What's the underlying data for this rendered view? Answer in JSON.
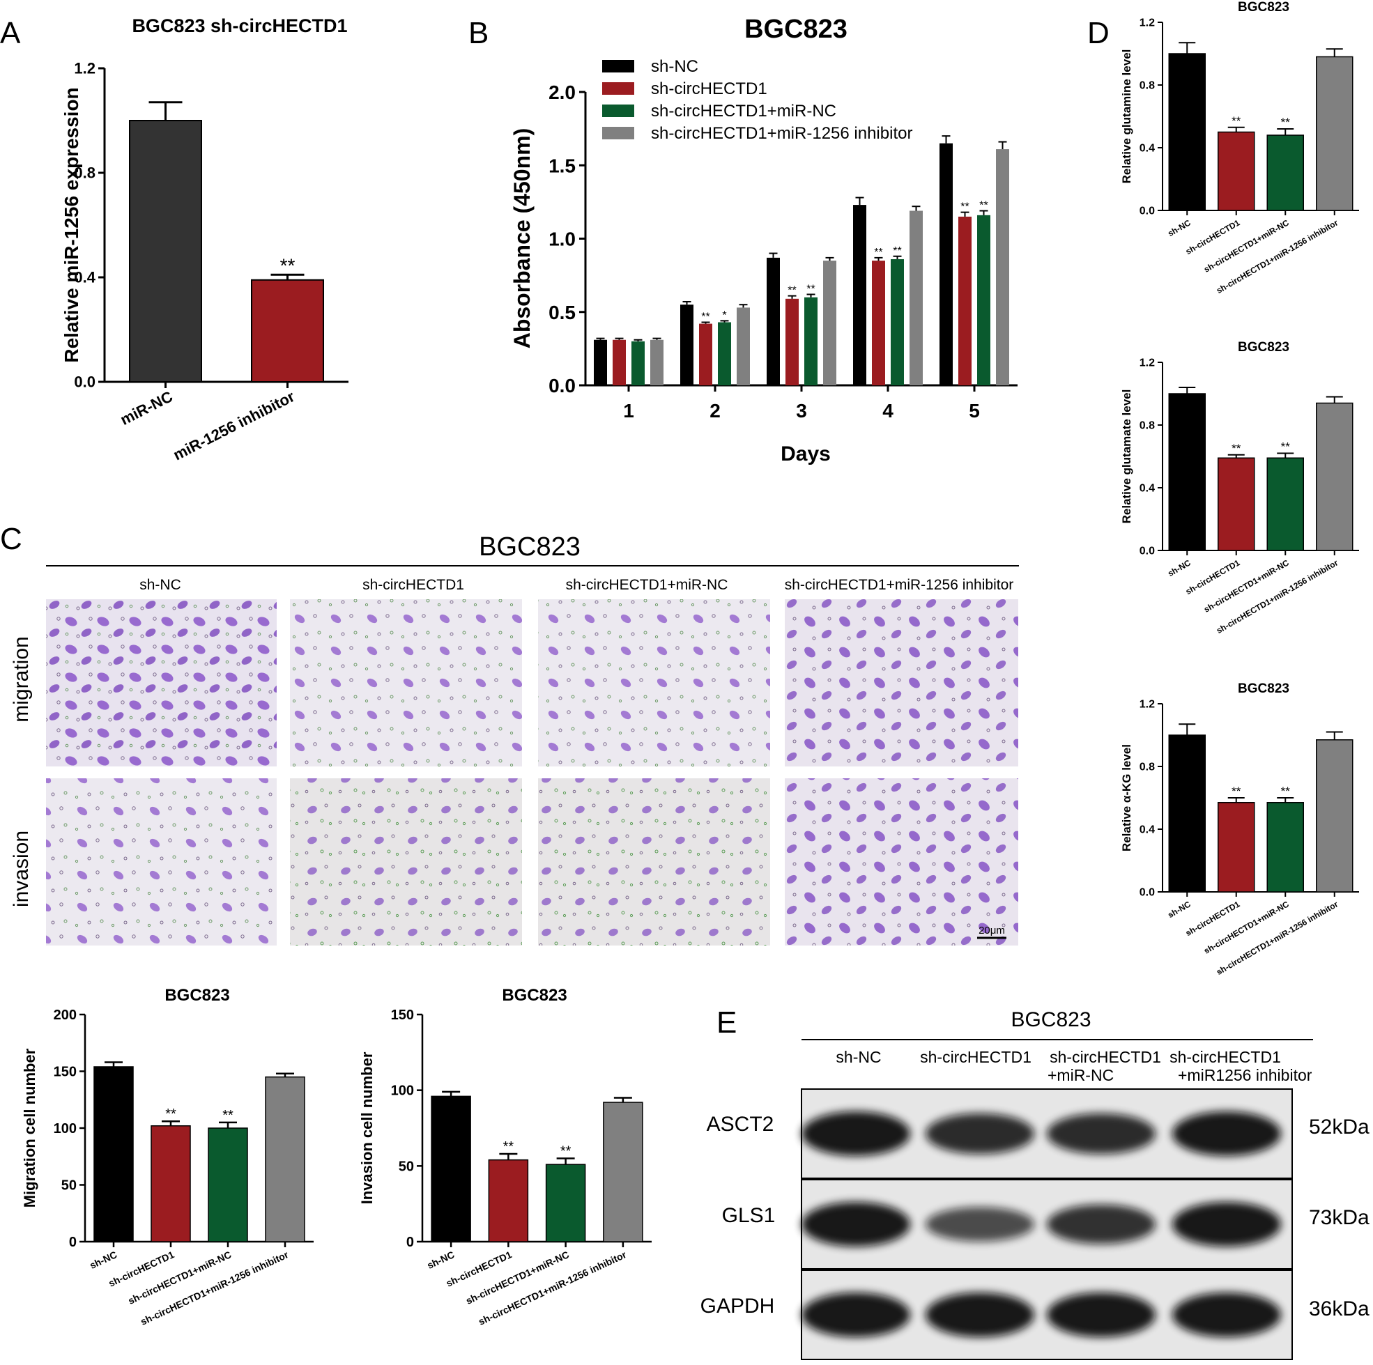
{
  "colors": {
    "black": "#000000",
    "dark": "#333333",
    "red": "#9b1c20",
    "green": "#0a5a2e",
    "gray": "#808080",
    "purple": "#7a45b8"
  },
  "panel_letters": {
    "a": "A",
    "b": "B",
    "c": "C",
    "d": "D",
    "e": "E"
  },
  "chart_data": [
    {
      "id": "A",
      "type": "bar",
      "title": "BGC823 sh-circHECTD1",
      "ylabel": "Relative miR-1256 expression",
      "xlabel": "",
      "categories": [
        "miR-NC",
        "miR-1256 inhibitor"
      ],
      "values": [
        1.0,
        0.39
      ],
      "errors": [
        0.07,
        0.02
      ],
      "sig": [
        "",
        "**"
      ],
      "ylim": [
        0,
        1.2
      ],
      "yticks": [
        "0.0",
        "0.4",
        "0.8",
        "1.2"
      ],
      "ytick_values": [
        0,
        0.4,
        0.8,
        1.2
      ]
    },
    {
      "id": "B",
      "type": "bar",
      "title": "BGC823",
      "ylabel": "Absorbance (450nm)",
      "xlabel": "Days",
      "categories": [
        "1",
        "2",
        "3",
        "4",
        "5"
      ],
      "ylim": [
        0,
        2.0
      ],
      "yticks": [
        "0.0",
        "0.5",
        "1.0",
        "1.5",
        "2.0"
      ],
      "ytick_values": [
        0,
        0.5,
        1.0,
        1.5,
        2.0
      ],
      "legend": [
        "sh-NC",
        "sh-circHECTD1",
        "sh-circHECTD1+miR-NC",
        "sh-circHECTD1+miR-1256 inhibitor"
      ],
      "series": [
        {
          "name": "sh-NC",
          "values": [
            0.31,
            0.55,
            0.87,
            1.23,
            1.65
          ],
          "errors": [
            0.01,
            0.02,
            0.03,
            0.05,
            0.05
          ],
          "sig": [
            "",
            "",
            "",
            "",
            ""
          ]
        },
        {
          "name": "sh-circHECTD1",
          "values": [
            0.31,
            0.42,
            0.59,
            0.85,
            1.15
          ],
          "errors": [
            0.01,
            0.01,
            0.02,
            0.02,
            0.03
          ],
          "sig": [
            "",
            "**",
            "**",
            "**",
            "**"
          ]
        },
        {
          "name": "sh-circHECTD1+miR-NC",
          "values": [
            0.3,
            0.43,
            0.6,
            0.86,
            1.16
          ],
          "errors": [
            0.01,
            0.01,
            0.02,
            0.02,
            0.03
          ],
          "sig": [
            "",
            "*",
            "**",
            "**",
            "**"
          ]
        },
        {
          "name": "sh-circHECTD1+miR-1256 inhibitor",
          "values": [
            0.31,
            0.53,
            0.85,
            1.19,
            1.61
          ],
          "errors": [
            0.01,
            0.02,
            0.02,
            0.03,
            0.05
          ],
          "sig": [
            "",
            "",
            "",
            "",
            ""
          ]
        }
      ]
    },
    {
      "id": "D1",
      "type": "bar",
      "title": "BGC823",
      "ylabel": "Relative glutamine level",
      "categories": [
        "sh-NC",
        "sh-circHECTD1",
        "sh-circHECTD1+miR-NC",
        "sh-circHECTD1+miR-1256 inhibitor"
      ],
      "values": [
        1.0,
        0.5,
        0.48,
        0.98
      ],
      "errors": [
        0.07,
        0.03,
        0.04,
        0.05
      ],
      "sig": [
        "",
        "**",
        "**",
        ""
      ],
      "ylim": [
        0,
        1.2
      ],
      "yticks": [
        "0.0",
        "0.4",
        "0.8",
        "1.2"
      ],
      "ytick_values": [
        0,
        0.4,
        0.8,
        1.2
      ]
    },
    {
      "id": "D2",
      "type": "bar",
      "title": "BGC823",
      "ylabel": "Relative glutamate level",
      "categories": [
        "sh-NC",
        "sh-circHECTD1",
        "sh-circHECTD1+miR-NC",
        "sh-circHECTD1+miR-1256 inhibitor"
      ],
      "values": [
        1.0,
        0.59,
        0.59,
        0.94
      ],
      "errors": [
        0.04,
        0.02,
        0.03,
        0.04
      ],
      "sig": [
        "",
        "**",
        "**",
        ""
      ],
      "ylim": [
        0,
        1.2
      ],
      "yticks": [
        "0.0",
        "0.4",
        "0.8",
        "1.2"
      ],
      "ytick_values": [
        0,
        0.4,
        0.8,
        1.2
      ]
    },
    {
      "id": "D3",
      "type": "bar",
      "title": "BGC823",
      "ylabel": "Relative α-KG level",
      "categories": [
        "sh-NC",
        "sh-circHECTD1",
        "sh-circHECTD1+miR-NC",
        "sh-circHECTD1+miR-1256 inhibitor"
      ],
      "values": [
        1.0,
        0.57,
        0.57,
        0.97
      ],
      "errors": [
        0.07,
        0.03,
        0.03,
        0.05
      ],
      "sig": [
        "",
        "**",
        "**",
        ""
      ],
      "ylim": [
        0,
        1.2
      ],
      "yticks": [
        "0.0",
        "0.4",
        "0.8",
        "1.2"
      ],
      "ytick_values": [
        0,
        0.4,
        0.8,
        1.2
      ]
    },
    {
      "id": "C-migration",
      "type": "bar",
      "title": "BGC823",
      "ylabel": "Migration cell number",
      "categories": [
        "sh-NC",
        "sh-circHECTD1",
        "sh-circHECTD1+miR-NC",
        "sh-circHECTD1+miR-1256 inhibitor"
      ],
      "values": [
        154,
        102,
        100,
        145
      ],
      "errors": [
        4,
        4,
        5,
        3
      ],
      "sig": [
        "",
        "**",
        "**",
        ""
      ],
      "ylim": [
        0,
        200
      ],
      "yticks": [
        "0",
        "50",
        "100",
        "150",
        "200"
      ],
      "ytick_values": [
        0,
        50,
        100,
        150,
        200
      ]
    },
    {
      "id": "C-invasion",
      "type": "bar",
      "title": "BGC823",
      "ylabel": "Invasion cell number",
      "categories": [
        "sh-NC",
        "sh-circHECTD1",
        "sh-circHECTD1+miR-NC",
        "sh-circHECTD1+miR-1256 inhibitor"
      ],
      "values": [
        96,
        54,
        51,
        92
      ],
      "errors": [
        3,
        4,
        4,
        3
      ],
      "sig": [
        "",
        "**",
        "**",
        ""
      ],
      "ylim": [
        0,
        150
      ],
      "yticks": [
        "0",
        "50",
        "100",
        "150"
      ],
      "ytick_values": [
        0,
        50,
        100,
        150
      ]
    }
  ],
  "panel_c": {
    "title": "BGC823",
    "columns": [
      "sh-NC",
      "sh-circHECTD1",
      "sh-circHECTD1+miR-NC",
      "sh-circHECTD1+miR-1256 inhibitor"
    ],
    "rows": [
      "migration",
      "invasion"
    ],
    "scale_bar": "20μm"
  },
  "panel_e": {
    "title": "BGC823",
    "lanes": [
      "sh-NC",
      "sh-circHECTD1",
      "sh-circHECTD1",
      "sh-circHECTD1"
    ],
    "lanes_line2": [
      "",
      "",
      "+miR-NC",
      "+miR1256 inhibitor"
    ],
    "proteins": [
      "ASCT2",
      "GLS1",
      "GAPDH"
    ],
    "sizes": [
      "52kDa",
      "73kDa",
      "36kDa"
    ],
    "band_intensity": [
      [
        1.0,
        0.85,
        0.85,
        1.0
      ],
      [
        1.0,
        0.6,
        0.8,
        1.0
      ],
      [
        1.0,
        1.0,
        1.0,
        1.0
      ]
    ]
  }
}
